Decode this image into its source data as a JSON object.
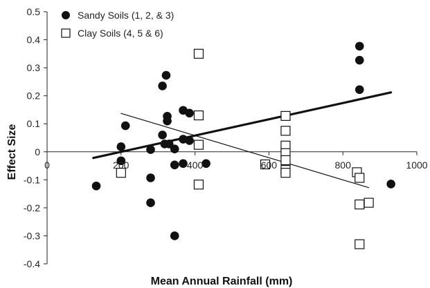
{
  "chart_data": {
    "type": "scatter",
    "xlabel": "Mean Annual Rainfall (mm)",
    "ylabel": "Effect Size",
    "xlim": [
      0,
      1000
    ],
    "ylim": [
      -0.4,
      0.5
    ],
    "xticks": [
      "0",
      "200",
      "400",
      "600",
      "800",
      "1000"
    ],
    "yticks": [
      "0.5",
      "0.4",
      "0.3",
      "0.2",
      "0.1",
      "0",
      "-0.1",
      "-0.2",
      "-0.3",
      "-0.4"
    ],
    "legend_position": "top-left",
    "series": [
      {
        "name": "Sandy Soils (1, 2, & 3)",
        "marker": "filled-circle",
        "color": "#111111",
        "points": [
          [
            133,
            -0.122
          ],
          [
            200,
            0.018
          ],
          [
            200,
            -0.032
          ],
          [
            212,
            0.093
          ],
          [
            280,
            0.008
          ],
          [
            280,
            -0.093
          ],
          [
            280,
            -0.182
          ],
          [
            312,
            0.235
          ],
          [
            312,
            0.06
          ],
          [
            318,
            0.028
          ],
          [
            322,
            0.273
          ],
          [
            325,
            0.127
          ],
          [
            325,
            0.11
          ],
          [
            330,
            0.028
          ],
          [
            345,
            0.01
          ],
          [
            345,
            -0.047
          ],
          [
            345,
            -0.3
          ],
          [
            368,
            0.148
          ],
          [
            368,
            0.045
          ],
          [
            368,
            -0.042
          ],
          [
            385,
            0.138
          ],
          [
            385,
            0.04
          ],
          [
            430,
            -0.042
          ],
          [
            845,
            0.377
          ],
          [
            845,
            0.327
          ],
          [
            845,
            0.222
          ],
          [
            930,
            -0.115
          ]
        ],
        "trend": [
          [
            125,
            -0.022
          ],
          [
            930,
            0.212
          ]
        ]
      },
      {
        "name": "Clay Soils (4, 5 & 6)",
        "marker": "open-square",
        "color": "#111111",
        "points": [
          [
            200,
            -0.075
          ],
          [
            410,
            0.35
          ],
          [
            410,
            0.13
          ],
          [
            410,
            0.025
          ],
          [
            410,
            -0.117
          ],
          [
            590,
            -0.045
          ],
          [
            645,
            0.128
          ],
          [
            645,
            0.075
          ],
          [
            645,
            0.022
          ],
          [
            645,
            -0.005
          ],
          [
            645,
            -0.03
          ],
          [
            645,
            -0.065
          ],
          [
            645,
            -0.075
          ],
          [
            838,
            -0.073
          ],
          [
            845,
            -0.093
          ],
          [
            845,
            -0.188
          ],
          [
            845,
            -0.33
          ],
          [
            870,
            -0.182
          ]
        ],
        "trend": [
          [
            200,
            0.137
          ],
          [
            870,
            -0.128
          ]
        ]
      }
    ]
  }
}
